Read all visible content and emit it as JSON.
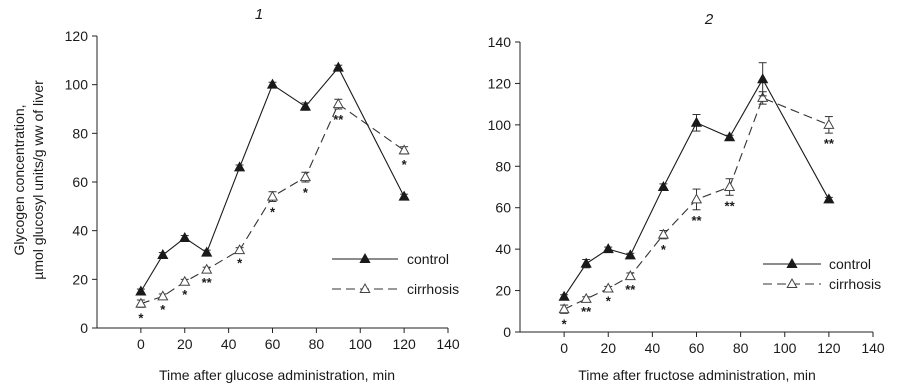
{
  "figure": {
    "ylabel_line1": "Glycogen concentration,",
    "ylabel_line2": "µmol glucosyl units/g ww of liver"
  },
  "chart_data": [
    {
      "type": "line",
      "title": "1",
      "xlabel": "Time after glucose administration, min",
      "ylabel": "Glycogen concentration, µmol glucosyl units/g ww of liver",
      "xlim": [
        -20,
        140
      ],
      "ylim": [
        0,
        120
      ],
      "xticks": [
        0,
        20,
        40,
        60,
        80,
        100,
        120,
        140
      ],
      "yticks": [
        0,
        20,
        40,
        60,
        80,
        100,
        120
      ],
      "grid": false,
      "legend_position": "lower-right",
      "x": [
        0,
        10,
        20,
        30,
        45,
        60,
        75,
        90,
        120
      ],
      "series": [
        {
          "name": "control",
          "marker": "filled-triangle",
          "line_style": "solid",
          "values": [
            15,
            30,
            37,
            31,
            66,
            100,
            91,
            107,
            54
          ],
          "errors": [
            1,
            1,
            1,
            1,
            1,
            1,
            1.5,
            1,
            1
          ]
        },
        {
          "name": "cirrhosis",
          "marker": "open-triangle",
          "line_style": "dashed",
          "values": [
            10,
            13,
            19,
            24,
            32,
            54,
            62,
            92,
            73
          ],
          "errors": [
            1.5,
            1,
            1,
            1,
            1,
            2,
            2,
            2,
            1.5
          ],
          "significance": [
            "*",
            "*",
            "*",
            "**",
            "*",
            "*",
            "*",
            "**",
            "*"
          ]
        }
      ]
    },
    {
      "type": "line",
      "title": "2",
      "xlabel": "Time after fructose administration, min",
      "ylabel": "",
      "xlim": [
        -20,
        140
      ],
      "ylim": [
        0,
        140
      ],
      "xticks": [
        0,
        20,
        40,
        60,
        80,
        100,
        120,
        140
      ],
      "yticks": [
        0,
        20,
        40,
        60,
        80,
        100,
        120,
        140
      ],
      "grid": false,
      "legend_position": "lower-right",
      "x": [
        0,
        10,
        20,
        30,
        45,
        60,
        75,
        90,
        120
      ],
      "series": [
        {
          "name": "control",
          "marker": "filled-triangle",
          "line_style": "solid",
          "values": [
            17,
            33,
            40,
            37,
            70,
            101,
            94,
            122,
            64
          ],
          "errors": [
            1,
            2,
            1,
            1,
            1.5,
            4,
            1,
            8,
            1
          ]
        },
        {
          "name": "cirrhosis",
          "marker": "open-triangle",
          "line_style": "dashed",
          "values": [
            11,
            16,
            21,
            27,
            47,
            64,
            70,
            113,
            100
          ],
          "errors": [
            2,
            1,
            1,
            1.5,
            2,
            5,
            4,
            3,
            4
          ],
          "significance": [
            "*",
            "**",
            "*",
            "**",
            "*",
            "**",
            "**",
            "",
            "**"
          ]
        }
      ]
    }
  ]
}
